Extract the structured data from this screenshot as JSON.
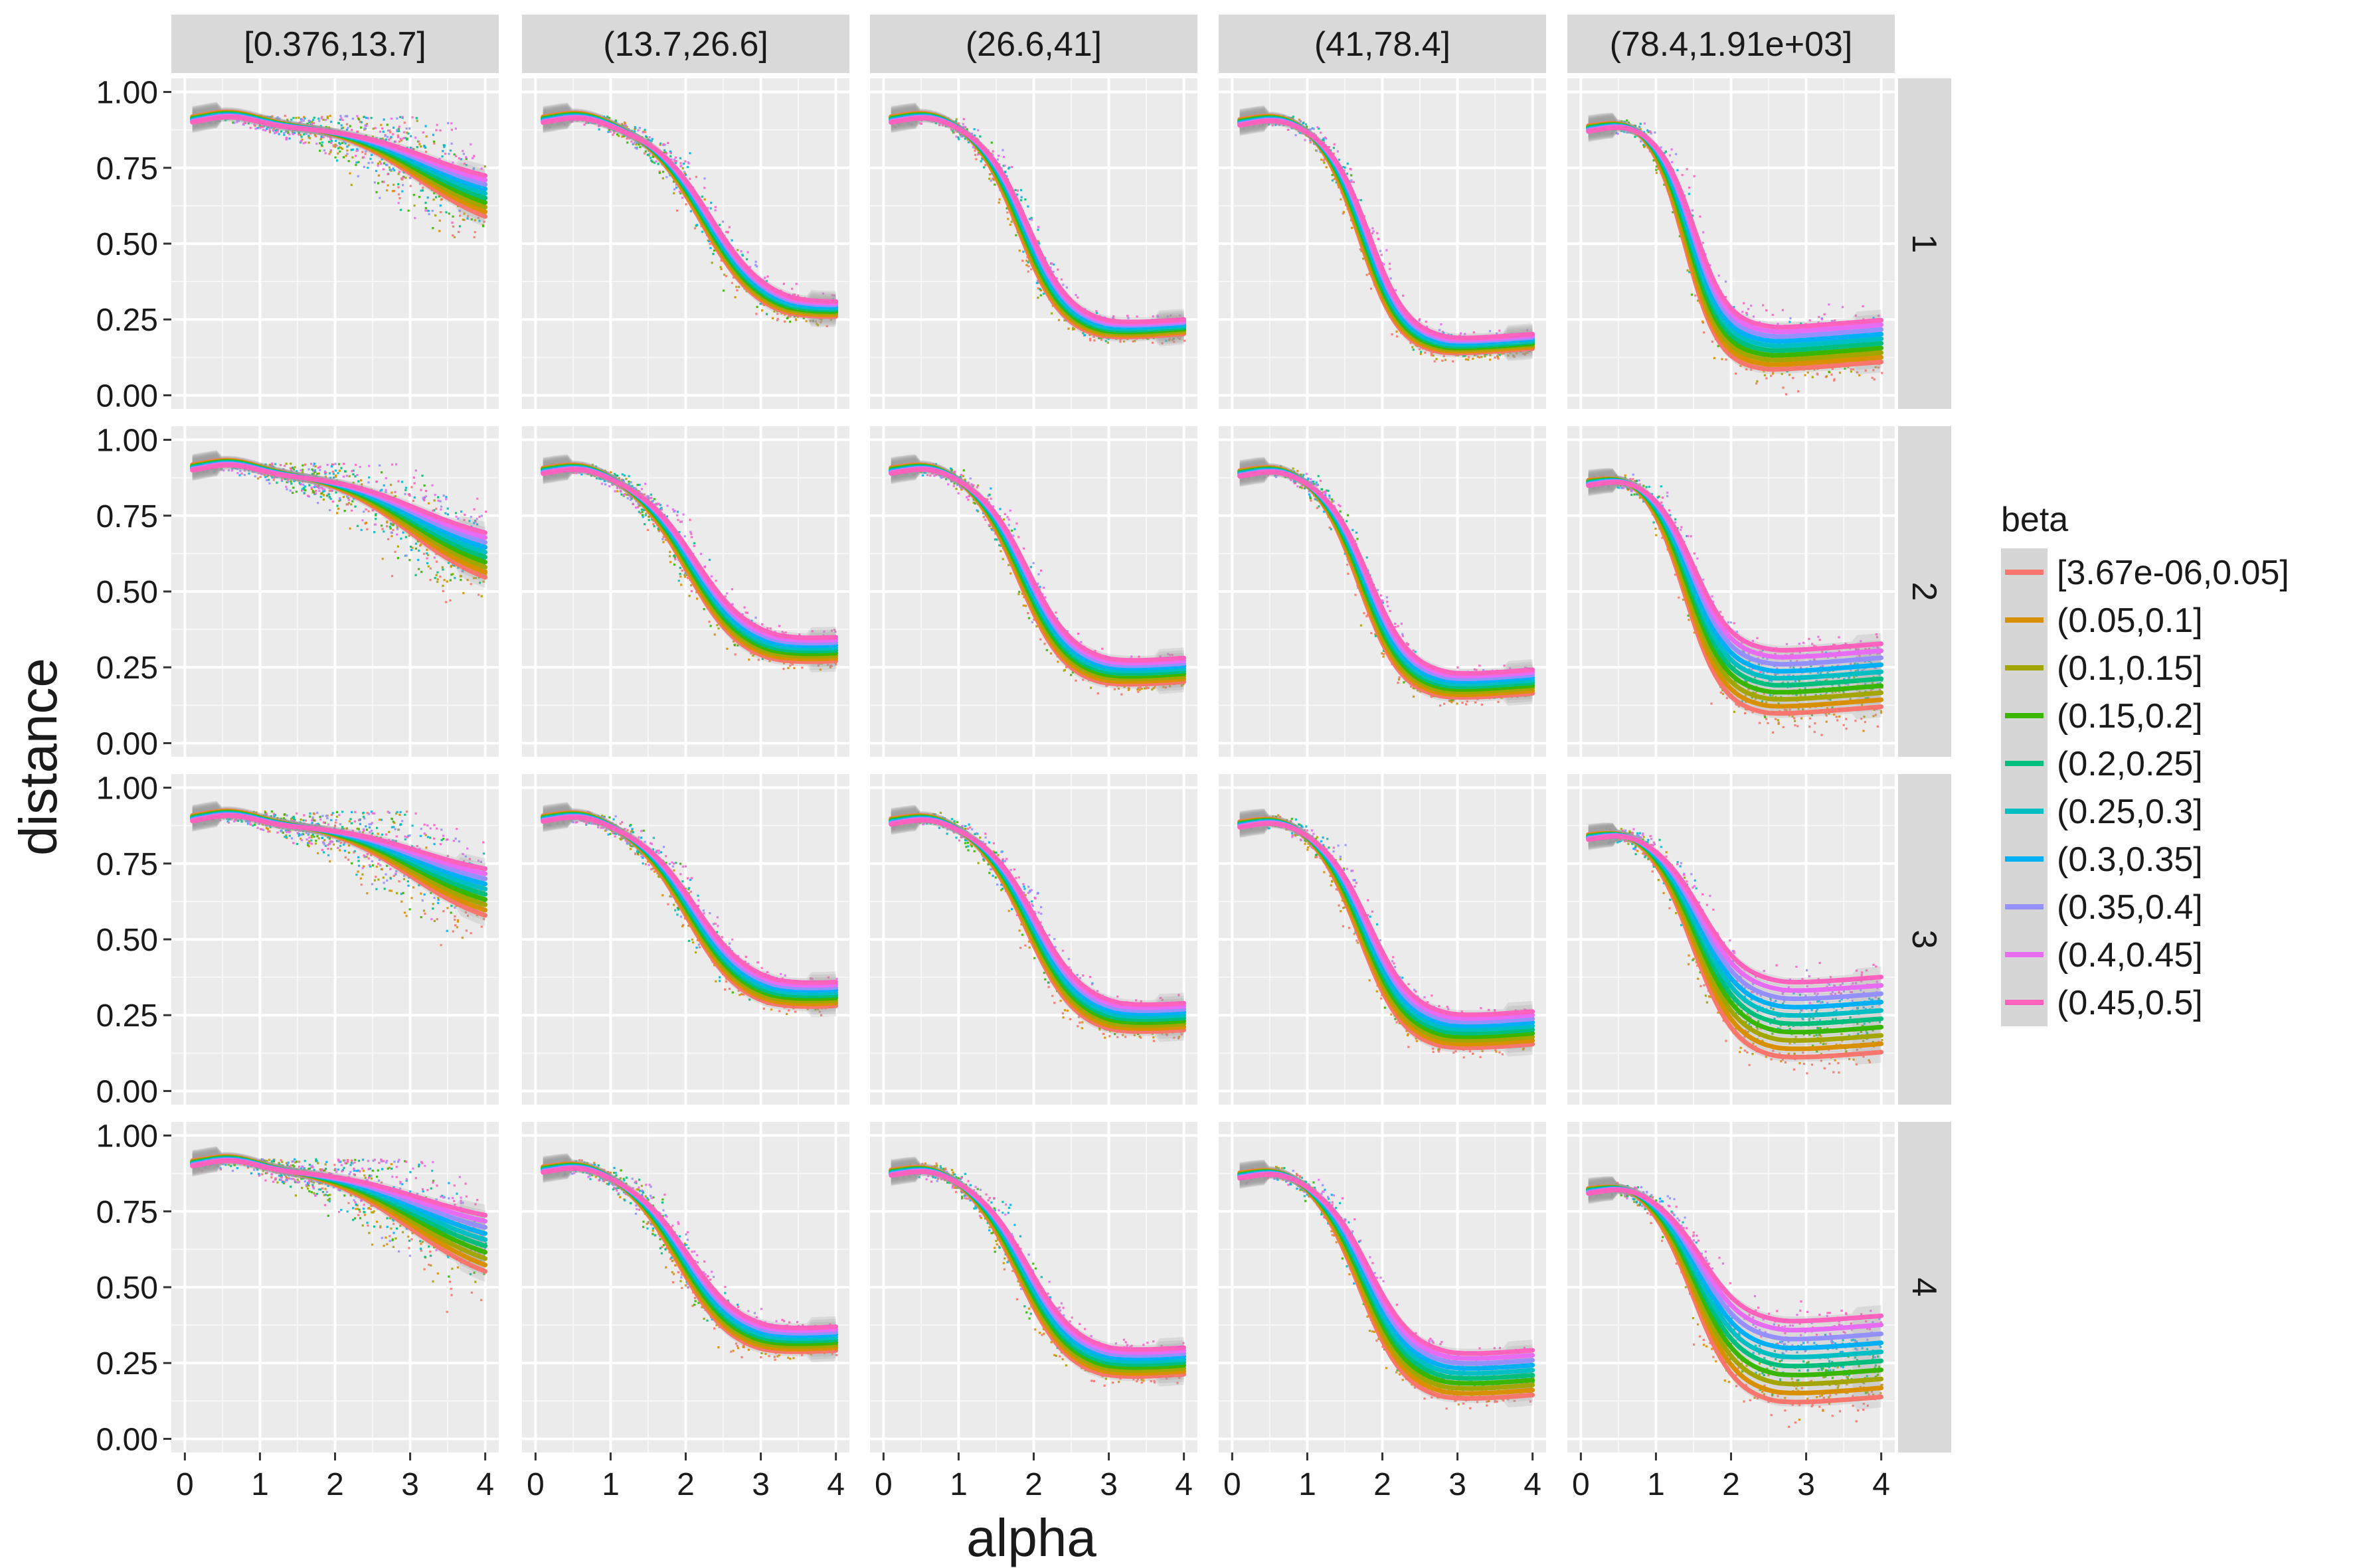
{
  "chart_data": {
    "type": "scatter",
    "subtype": "faceted scatter with smoothed trend lines (facet grid)",
    "xlabel": "alpha",
    "ylabel": "distance",
    "xlim": [
      0,
      4
    ],
    "ylim": [
      0,
      1
    ],
    "x_ticks": [
      "0",
      "1",
      "2",
      "3",
      "4"
    ],
    "y_ticks": [
      "0.00",
      "0.25",
      "0.50",
      "0.75",
      "1.00"
    ],
    "grid": true,
    "legend": {
      "title": "beta",
      "position": "right",
      "entries": [
        "[3.67e-06,0.05]",
        "(0.05,0.1]",
        "(0.1,0.15]",
        "(0.15,0.2]",
        "(0.2,0.25]",
        "(0.25,0.3]",
        "(0.3,0.35]",
        "(0.35,0.4]",
        "(0.4,0.45]",
        "(0.45,0.5]"
      ],
      "colors": [
        "#F8766D",
        "#D89000",
        "#A3A500",
        "#39B600",
        "#00BF7D",
        "#00BFC4",
        "#00B0F6",
        "#9590FF",
        "#E76BF3",
        "#FF62BC"
      ]
    },
    "col_facets": [
      "[0.376,13.7]",
      "(13.7,26.6]",
      "(26.6,41]",
      "(41,78.4]",
      "(78.4,1.91e+03]"
    ],
    "row_facets": [
      "1",
      "2",
      "3",
      "4"
    ],
    "curve_model": "distance ≈ lower + (upper - lower) / (1 + exp(steepness * (alpha - midpoint))), per panel and beta series",
    "panel_params": [
      [
        {
          "upper": 0.91,
          "mid": 3.1,
          "k": 1.7,
          "low_min": 0.52,
          "low_max": 0.68
        },
        {
          "upper": 0.91,
          "mid": 2.2,
          "k": 2.6,
          "low_min": 0.24,
          "low_max": 0.29
        },
        {
          "upper": 0.91,
          "mid": 1.8,
          "k": 3.4,
          "low_min": 0.18,
          "low_max": 0.23
        },
        {
          "upper": 0.9,
          "mid": 1.7,
          "k": 3.8,
          "low_min": 0.13,
          "low_max": 0.18
        },
        {
          "upper": 0.88,
          "mid": 1.4,
          "k": 4.5,
          "low_min": 0.08,
          "low_max": 0.22
        }
      ],
      [
        {
          "upper": 0.91,
          "mid": 3.0,
          "k": 1.7,
          "low_min": 0.48,
          "low_max": 0.65
        },
        {
          "upper": 0.9,
          "mid": 2.0,
          "k": 2.7,
          "low_min": 0.25,
          "low_max": 0.33
        },
        {
          "upper": 0.9,
          "mid": 1.8,
          "k": 3.2,
          "low_min": 0.18,
          "low_max": 0.26
        },
        {
          "upper": 0.89,
          "mid": 1.7,
          "k": 3.6,
          "low_min": 0.14,
          "low_max": 0.22
        },
        {
          "upper": 0.86,
          "mid": 1.4,
          "k": 4.0,
          "low_min": 0.09,
          "low_max": 0.3
        }
      ],
      [
        {
          "upper": 0.9,
          "mid": 3.0,
          "k": 1.7,
          "low_min": 0.52,
          "low_max": 0.7
        },
        {
          "upper": 0.9,
          "mid": 2.0,
          "k": 2.7,
          "low_min": 0.26,
          "low_max": 0.34
        },
        {
          "upper": 0.89,
          "mid": 1.9,
          "k": 3.0,
          "low_min": 0.18,
          "low_max": 0.27
        },
        {
          "upper": 0.88,
          "mid": 1.7,
          "k": 3.4,
          "low_min": 0.13,
          "low_max": 0.24
        },
        {
          "upper": 0.84,
          "mid": 1.5,
          "k": 3.5,
          "low_min": 0.1,
          "low_max": 0.35
        }
      ],
      [
        {
          "upper": 0.91,
          "mid": 3.0,
          "k": 1.6,
          "low_min": 0.48,
          "low_max": 0.7
        },
        {
          "upper": 0.89,
          "mid": 1.9,
          "k": 2.8,
          "low_min": 0.27,
          "low_max": 0.35
        },
        {
          "upper": 0.88,
          "mid": 1.8,
          "k": 3.0,
          "low_min": 0.19,
          "low_max": 0.28
        },
        {
          "upper": 0.87,
          "mid": 1.7,
          "k": 3.3,
          "low_min": 0.12,
          "low_max": 0.27
        },
        {
          "upper": 0.82,
          "mid": 1.5,
          "k": 3.5,
          "low_min": 0.11,
          "low_max": 0.38
        }
      ]
    ]
  }
}
